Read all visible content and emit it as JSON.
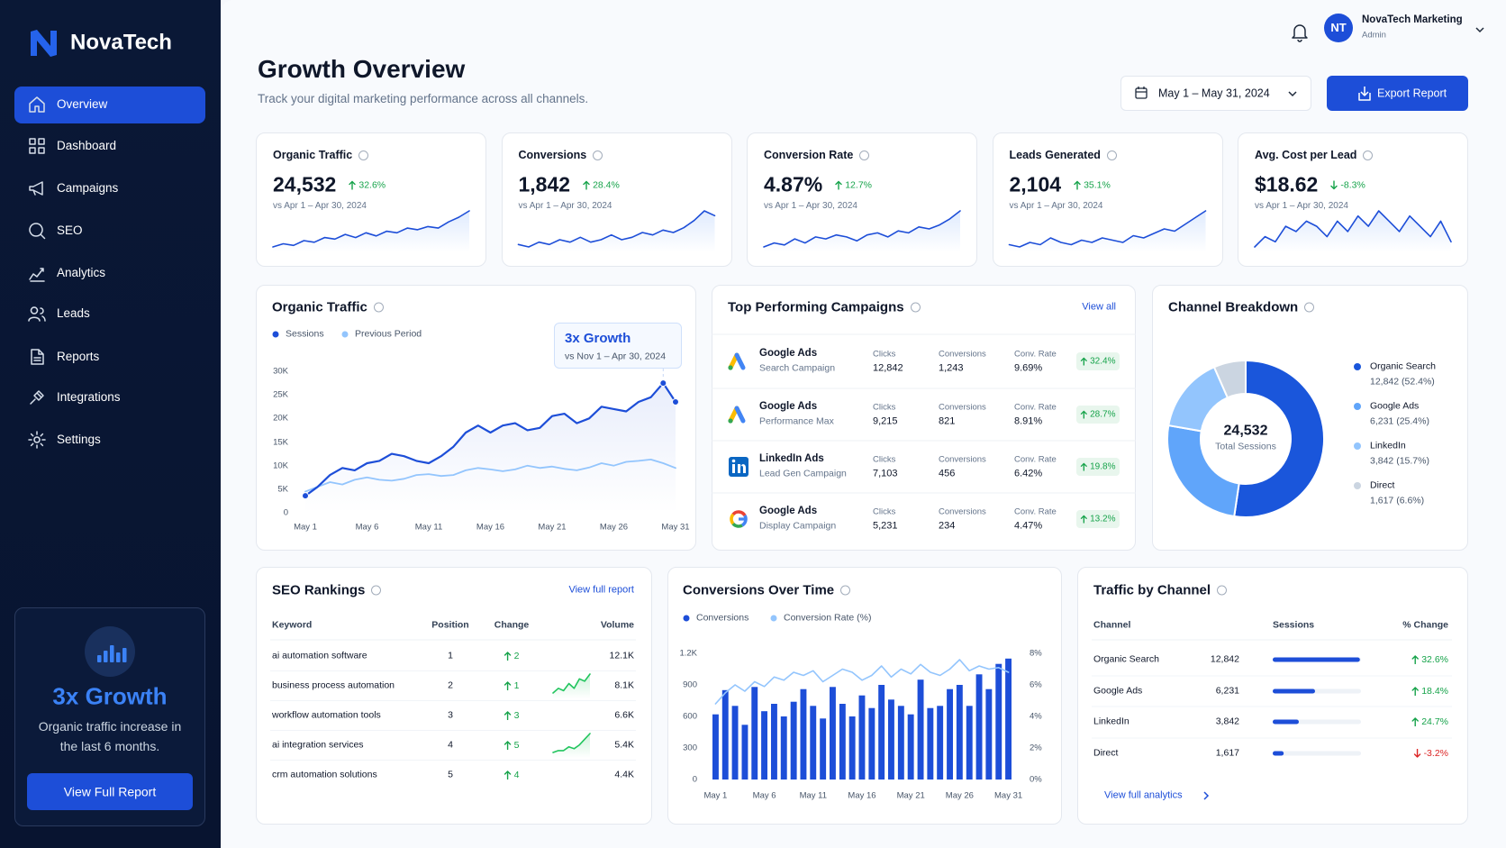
{
  "sidebar": {
    "brand": "NovaTech",
    "nav": [
      "Overview",
      "Dashboard",
      "Campaigns",
      "SEO",
      "Analytics",
      "Leads",
      "Reports",
      "Integrations",
      "Settings"
    ],
    "promo": {
      "title": "3x Growth",
      "text": "Organic traffic increase in the last 6 months.",
      "button": "View Full Report"
    }
  },
  "header": {
    "title": "Growth Overview",
    "subtitle": "Track your digital marketing performance across all channels.",
    "date_range": "May 1 – May 31, 2024",
    "export_button": "Export Report",
    "user": {
      "initials": "NT",
      "name": "NovaTech Marketing",
      "role": "Admin"
    }
  },
  "kpis": [
    {
      "label": "Organic Traffic",
      "value": "24,532",
      "change": "32.6%",
      "compare": "vs Apr 1 – Apr 30, 2024",
      "trend": [
        10,
        12,
        11,
        14,
        13,
        16,
        15,
        18,
        16,
        19,
        17,
        20,
        19,
        22,
        21,
        23,
        22,
        26,
        29,
        33
      ]
    },
    {
      "label": "Conversions",
      "value": "1,842",
      "change": "28.4%",
      "compare": "vs Apr 1 – Apr 30, 2024",
      "trend": [
        12,
        11,
        13,
        12,
        14,
        13,
        15,
        13,
        14,
        16,
        14,
        15,
        17,
        16,
        18,
        17,
        19,
        22,
        26,
        24
      ]
    },
    {
      "label": "Conversion Rate",
      "value": "4.87%",
      "change": "12.7%",
      "compare": "vs Apr 1 – Apr 30, 2024",
      "trend": [
        11,
        13,
        12,
        15,
        13,
        16,
        15,
        17,
        16,
        14,
        17,
        18,
        16,
        19,
        18,
        21,
        20,
        22,
        25,
        29
      ]
    },
    {
      "label": "Leads Generated",
      "value": "2,104",
      "change": "35.1%",
      "compare": "vs Apr 1 – Apr 30, 2024",
      "trend": [
        13,
        12,
        14,
        13,
        16,
        14,
        13,
        15,
        14,
        16,
        15,
        14,
        17,
        16,
        18,
        20,
        19,
        22,
        25,
        28
      ]
    },
    {
      "label": "Avg. Cost per Lead",
      "value": "$18.62",
      "change": "-8.3%",
      "compare": "vs Apr 1 – Apr 30, 2024",
      "trend": [
        20,
        22,
        21,
        24,
        23,
        25,
        24,
        22,
        25,
        23,
        26,
        24,
        27,
        25,
        23,
        26,
        24,
        22,
        25,
        21
      ]
    }
  ],
  "organic_traffic": {
    "type": "line",
    "title": "Organic Traffic",
    "annotation": {
      "title": "3x Growth",
      "subtitle": "vs Nov 1 – Apr 30, 2024"
    },
    "categories": [
      "May 1",
      null,
      null,
      null,
      null,
      "May 6",
      null,
      null,
      null,
      null,
      "May 11",
      null,
      null,
      null,
      null,
      "May 16",
      null,
      null,
      null,
      null,
      "May 21",
      null,
      null,
      null,
      null,
      "May 26",
      null,
      null,
      null,
      null,
      "May 31"
    ],
    "series": [
      {
        "name": "Sessions",
        "color": "#1d4ed8",
        "values": [
          3600,
          5500,
          8000,
          9500,
          9000,
          10500,
          11000,
          12500,
          12000,
          11000,
          10500,
          12000,
          14000,
          17000,
          18500,
          17000,
          18500,
          19000,
          17500,
          18000,
          20500,
          21000,
          19000,
          20000,
          22500,
          22000,
          21500,
          23500,
          24500,
          27500,
          23500
        ]
      },
      {
        "name": "Previous Period",
        "color": "#93c5fd",
        "values": [
          4500,
          5500,
          6500,
          6000,
          7000,
          7500,
          7000,
          6800,
          7200,
          8000,
          8200,
          7800,
          8000,
          9000,
          9500,
          9200,
          8800,
          9200,
          10000,
          9500,
          9800,
          9300,
          9000,
          9600,
          10500,
          10000,
          10800,
          11000,
          11300,
          10500,
          9500
        ]
      }
    ],
    "ylim": [
      0,
      30000
    ],
    "yticks": [
      0,
      {
        "value": 5000,
        "label": "5K"
      },
      {
        "value": 10000,
        "label": "10K"
      },
      {
        "value": 15000,
        "label": "15K"
      },
      {
        "value": 20000,
        "label": "20K"
      },
      {
        "value": 25000,
        "label": "25K"
      },
      {
        "value": 30000,
        "label": "30K"
      }
    ],
    "grid": false
  },
  "top_campaigns": {
    "title": "Top Performing Campaigns",
    "link": "View all",
    "columns": [
      "Clicks",
      "Conversions",
      "Conv. Rate"
    ],
    "rows": [
      {
        "platform": "Google Ads",
        "campaign": "Search Campaign",
        "clicks": "12,842",
        "conversions": "1,243",
        "conv_rate": "9.69%",
        "change": "32.4%"
      },
      {
        "platform": "Google Ads",
        "campaign": "Performance Max",
        "clicks": "9,215",
        "conversions": "821",
        "conv_rate": "8.91%",
        "change": "28.7%"
      },
      {
        "platform": "LinkedIn Ads",
        "campaign": "Lead Gen Campaign",
        "clicks": "7,103",
        "conversions": "456",
        "conv_rate": "6.42%",
        "change": "19.8%"
      },
      {
        "platform": "Google Ads",
        "campaign": "Display Campaign",
        "clicks": "5,231",
        "conversions": "234",
        "conv_rate": "4.47%",
        "change": "13.2%"
      }
    ]
  },
  "channel_breakdown": {
    "type": "donut",
    "title": "Channel Breakdown",
    "center_value": "24,532",
    "center_label": "Total Sessions",
    "categories": [
      "Organic Search",
      "Google Ads",
      "LinkedIn",
      "Direct"
    ],
    "values": [
      12842,
      6231,
      3842,
      1617
    ],
    "value_labels": [
      "12,842 (52.4%)",
      "6,231 (25.4%)",
      "3,842 (15.7%)",
      "1,617 (6.6%)"
    ],
    "colors": [
      "#1a56db",
      "#60a5fa",
      "#93c5fd",
      "#cbd5e1"
    ]
  },
  "seo_rankings": {
    "title": "SEO Rankings",
    "link": "View full report",
    "columns": [
      "Keyword",
      "Position",
      "Change",
      "Volume"
    ],
    "rows": [
      {
        "keyword": "ai automation software",
        "position": 1,
        "change": 2,
        "volume": "12.1K"
      },
      {
        "keyword": "business process automation",
        "position": 2,
        "change": 1,
        "volume": "8.1K",
        "trend": [
          3,
          5,
          4,
          7,
          5,
          9,
          8,
          11
        ]
      },
      {
        "keyword": "workflow automation tools",
        "position": 3,
        "change": 3,
        "volume": "6.6K"
      },
      {
        "keyword": "ai integration services",
        "position": 4,
        "change": 5,
        "volume": "5.4K",
        "trend": [
          2,
          3,
          3,
          5,
          4,
          6,
          9,
          12
        ]
      },
      {
        "keyword": "crm automation solutions",
        "position": 5,
        "change": 4,
        "volume": "4.4K"
      }
    ]
  },
  "conversions_over_time": {
    "type": "bar_line",
    "title": "Conversions Over Time",
    "categories": [
      "May 1",
      null,
      null,
      null,
      null,
      "May 6",
      null,
      null,
      null,
      null,
      "May 11",
      null,
      null,
      null,
      null,
      "May 16",
      null,
      null,
      null,
      null,
      "May 21",
      null,
      null,
      null,
      null,
      "May 26",
      null,
      null,
      null,
      null,
      "May 31"
    ],
    "series": [
      {
        "name": "Conversions",
        "color": "#1d4ed8",
        "type": "bar",
        "values": [
          620,
          850,
          700,
          520,
          880,
          650,
          720,
          600,
          740,
          860,
          700,
          580,
          880,
          720,
          600,
          800,
          680,
          900,
          760,
          700,
          620,
          950,
          680,
          700,
          860,
          900,
          700,
          1000,
          860,
          1100,
          1150
        ]
      },
      {
        "name": "Conversion Rate (%)",
        "color": "#93c5fd",
        "type": "line",
        "axis": "y2",
        "values": [
          4.8,
          5.5,
          6.0,
          5.6,
          6.2,
          5.9,
          6.5,
          6.3,
          6.8,
          6.6,
          6.9,
          6.2,
          6.6,
          7.0,
          6.8,
          6.3,
          6.6,
          7.2,
          6.5,
          7.0,
          6.7,
          7.3,
          6.8,
          6.6,
          7.0,
          7.6,
          6.9,
          7.2,
          7.0,
          7.1,
          6.8
        ]
      }
    ],
    "ylim": [
      0,
      1200
    ],
    "yticks": [
      0,
      300,
      600,
      900,
      {
        "value": 1200,
        "label": "1.2K"
      }
    ],
    "y2lim": [
      0,
      8
    ],
    "y2ticks": [
      {
        "value": 0,
        "label": "0%"
      },
      {
        "value": 2,
        "label": "2%"
      },
      {
        "value": 4,
        "label": "4%"
      },
      {
        "value": 6,
        "label": "6%"
      },
      {
        "value": 8,
        "label": "8%"
      }
    ]
  },
  "traffic_by_channel": {
    "type": "hbar",
    "title": "Traffic by Channel",
    "columns": [
      "Channel",
      "Sessions",
      "% Change"
    ],
    "categories": [
      "Organic Search",
      "Google Ads",
      "LinkedIn",
      "Direct"
    ],
    "values": [
      12842,
      6231,
      3842,
      1617
    ],
    "value_labels": [
      "12,842",
      "6,231",
      "3,842",
      "1,617"
    ],
    "changes": [
      "32.6%",
      "18.4%",
      "24.7%",
      "-3.2%"
    ],
    "xlim": [
      0,
      13000
    ],
    "color": "#1d4ed8",
    "link": "View full analytics"
  }
}
